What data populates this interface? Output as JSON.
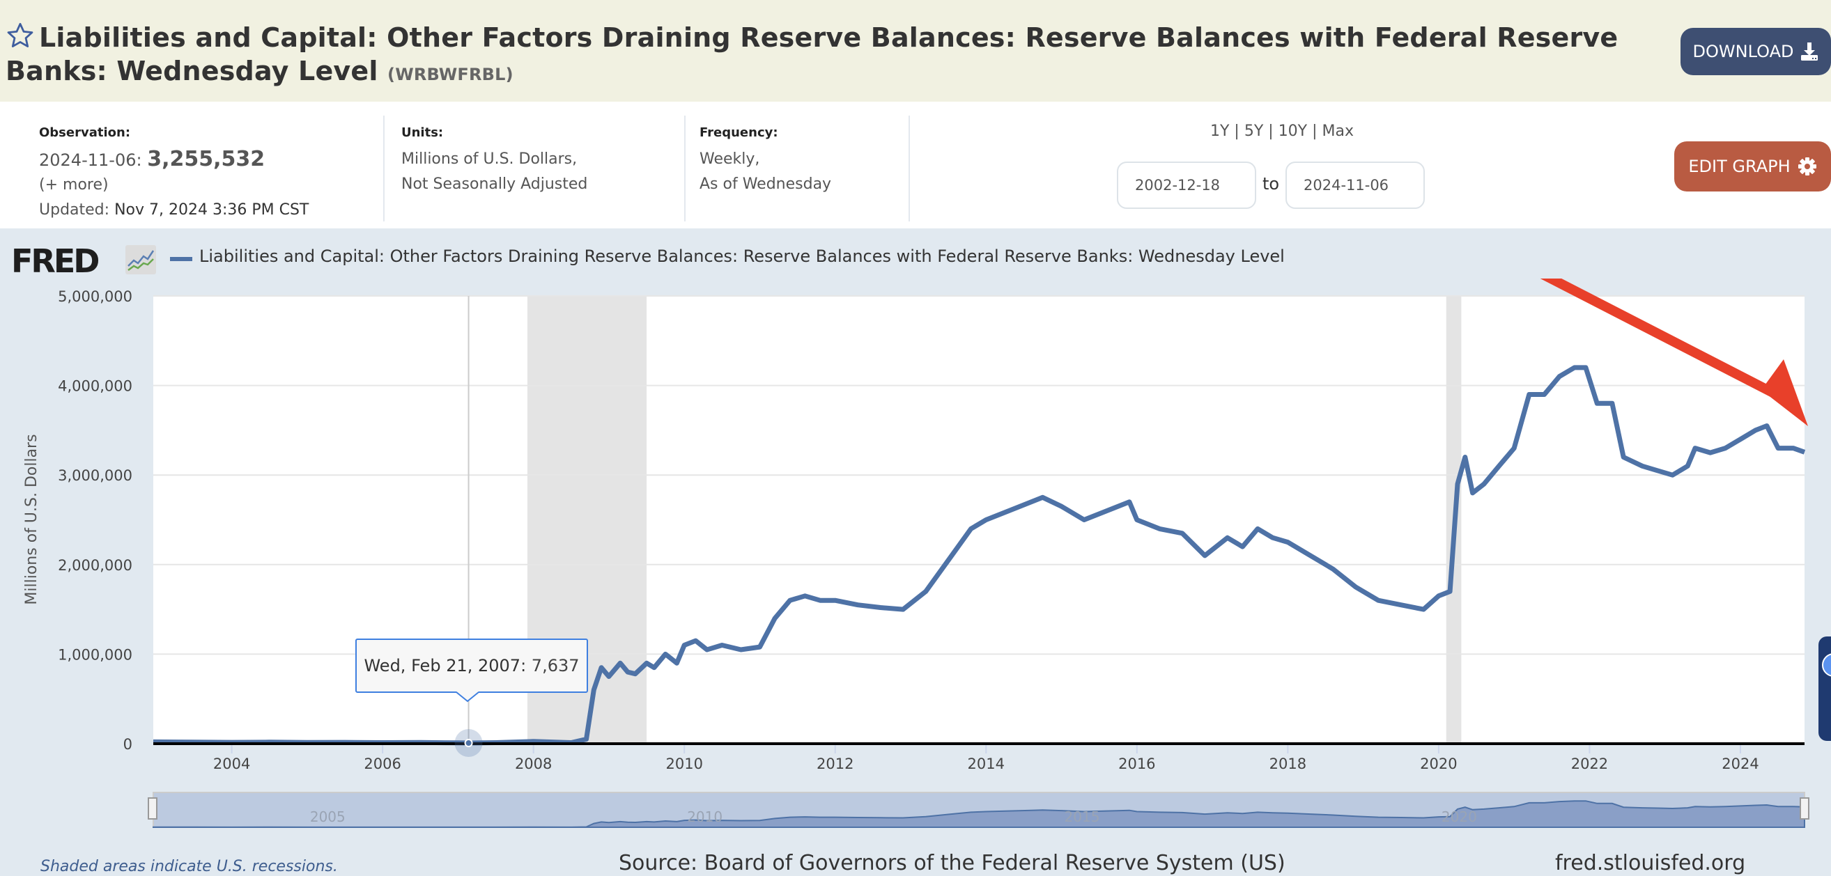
{
  "header": {
    "title": "Liabilities and Capital: Other Factors Draining Reserve Balances: Reserve Balances with Federal Reserve Banks: Wednesday Level",
    "series_id": "(WRBWFRBL)",
    "download_label": "DOWNLOAD",
    "icons": {
      "favorite": "star-outline-icon",
      "download": "download-icon"
    }
  },
  "info": {
    "observation": {
      "label": "Observation:",
      "date": "2024-11-06:",
      "value": "3,255,532",
      "more": "(+ more)",
      "updated_label": "Updated:",
      "updated_value": "Nov 7, 2024 3:36 PM CST"
    },
    "units": {
      "label": "Units:",
      "line1": "Millions of U.S. Dollars,",
      "line2": "Not Seasonally Adjusted"
    },
    "frequency": {
      "label": "Frequency:",
      "line1": "Weekly,",
      "line2": "As of Wednesday"
    },
    "ranges": [
      "1Y",
      "5Y",
      "10Y",
      "Max"
    ],
    "range_separator": "|",
    "start_date": "2002-12-18",
    "to_label": "to",
    "end_date": "2024-11-06",
    "edit_label": "EDIT GRAPH",
    "edit_icon": "gear-icon"
  },
  "legend": {
    "logo_text": "FRED",
    "series_label": "Liabilities and Capital: Other Factors Draining Reserve Balances: Reserve Balances with Federal Reserve Banks: Wednesday Level",
    "series_color": "#4e72a6"
  },
  "tooltip": {
    "date": "Wed, Feb 21, 2007:",
    "value": "7,637"
  },
  "footer": {
    "note": "Shaded areas indicate U.S. recessions.",
    "source": "Source: Board of Governors of the Federal Reserve System (US)",
    "url": "fred.stlouisfed.org"
  },
  "annotation": {
    "type": "arrow",
    "color": "#e8402a",
    "direction": "down-right"
  },
  "chart_data": {
    "type": "line",
    "title": "Liabilities and Capital: Other Factors Draining Reserve Balances: Reserve Balances with Federal Reserve Banks: Wednesday Level",
    "xlabel": "",
    "ylabel": "Millions of U.S. Dollars",
    "ylim": [
      0,
      5000000
    ],
    "xlim": [
      2002.96,
      2024.85
    ],
    "yticks": [
      0,
      1000000,
      2000000,
      3000000,
      4000000,
      5000000
    ],
    "ytick_labels": [
      "0",
      "1,000,000",
      "2,000,000",
      "3,000,000",
      "4,000,000",
      "5,000,000"
    ],
    "xticks": [
      2004,
      2006,
      2008,
      2010,
      2012,
      2014,
      2016,
      2018,
      2020,
      2022,
      2024
    ],
    "xtick_labels": [
      "2004",
      "2006",
      "2008",
      "2010",
      "2012",
      "2014",
      "2016",
      "2018",
      "2020",
      "2022",
      "2024"
    ],
    "navigator_labels": [
      "2005",
      "2010",
      "2015",
      "2020"
    ],
    "grid": true,
    "legend_position": "top-left",
    "recessions": [
      [
        2007.92,
        2009.5
      ],
      [
        2020.1,
        2020.3
      ]
    ],
    "highlight": {
      "x": 2007.14,
      "y": 7637,
      "label": "Wed, Feb 21, 2007: 7,637"
    },
    "series": [
      {
        "name": "WRBWFRBL",
        "color": "#4e72a6",
        "x": [
          2002.96,
          2003.5,
          2004.0,
          2004.5,
          2005.0,
          2005.5,
          2006.0,
          2006.5,
          2007.0,
          2007.14,
          2007.5,
          2008.0,
          2008.5,
          2008.7,
          2008.8,
          2008.9,
          2009.0,
          2009.15,
          2009.25,
          2009.35,
          2009.5,
          2009.6,
          2009.75,
          2009.9,
          2010.0,
          2010.15,
          2010.3,
          2010.5,
          2010.75,
          2011.0,
          2011.2,
          2011.4,
          2011.6,
          2011.8,
          2012.0,
          2012.3,
          2012.6,
          2012.9,
          2013.2,
          2013.5,
          2013.8,
          2014.0,
          2014.3,
          2014.6,
          2014.75,
          2015.0,
          2015.3,
          2015.6,
          2015.9,
          2016.0,
          2016.3,
          2016.6,
          2016.9,
          2017.2,
          2017.4,
          2017.6,
          2017.8,
          2018.0,
          2018.3,
          2018.6,
          2018.9,
          2019.2,
          2019.5,
          2019.8,
          2020.0,
          2020.15,
          2020.25,
          2020.35,
          2020.45,
          2020.6,
          2020.8,
          2021.0,
          2021.2,
          2021.4,
          2021.6,
          2021.8,
          2021.95,
          2022.1,
          2022.3,
          2022.45,
          2022.7,
          2022.9,
          2023.1,
          2023.3,
          2023.4,
          2023.6,
          2023.8,
          2024.0,
          2024.2,
          2024.35,
          2024.5,
          2024.7,
          2024.85
        ],
        "y": [
          20000,
          18000,
          15000,
          17000,
          14000,
          15000,
          12000,
          13000,
          9000,
          7637,
          12000,
          25000,
          12000,
          50000,
          600000,
          850000,
          750000,
          900000,
          800000,
          780000,
          900000,
          850000,
          1000000,
          900000,
          1100000,
          1150000,
          1050000,
          1100000,
          1050000,
          1080000,
          1400000,
          1600000,
          1650000,
          1600000,
          1600000,
          1550000,
          1520000,
          1500000,
          1700000,
          2050000,
          2400000,
          2500000,
          2600000,
          2700000,
          2750000,
          2650000,
          2500000,
          2600000,
          2700000,
          2500000,
          2400000,
          2350000,
          2100000,
          2300000,
          2200000,
          2400000,
          2300000,
          2250000,
          2100000,
          1950000,
          1750000,
          1600000,
          1550000,
          1500000,
          1650000,
          1700000,
          2900000,
          3200000,
          2800000,
          2900000,
          3100000,
          3300000,
          3900000,
          3900000,
          4100000,
          4200000,
          4200000,
          3800000,
          3800000,
          3200000,
          3100000,
          3050000,
          3000000,
          3100000,
          3300000,
          3250000,
          3300000,
          3400000,
          3500000,
          3550000,
          3300000,
          3300000,
          3255532
        ]
      }
    ]
  }
}
